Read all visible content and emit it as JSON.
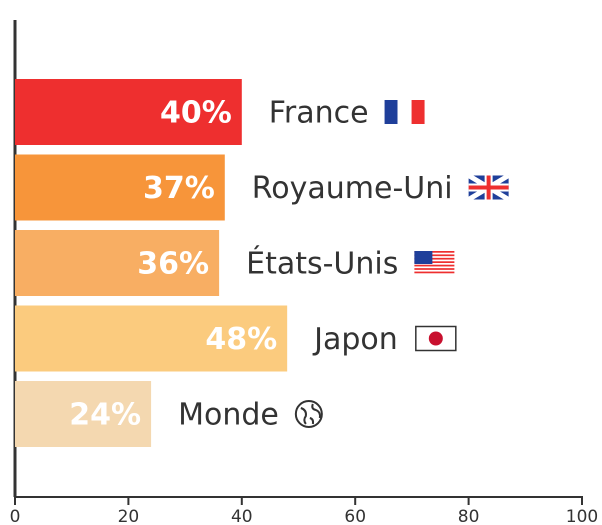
{
  "chart_data": {
    "type": "bar",
    "orientation": "horizontal",
    "categories": [
      "France",
      "Royaume-Uni",
      "États-Unis",
      "Japon",
      "Monde"
    ],
    "values": [
      40,
      37,
      36,
      48,
      24
    ],
    "value_labels": [
      "40%",
      "37%",
      "36%",
      "48%",
      "24%"
    ],
    "colors": [
      "#ee2f2f",
      "#f7953a",
      "#f8ae63",
      "#fbcb7e",
      "#f4d8b0"
    ],
    "xlim": [
      0,
      100
    ],
    "xticks": [
      0,
      20,
      40,
      60,
      80,
      100
    ],
    "grid": false
  }
}
